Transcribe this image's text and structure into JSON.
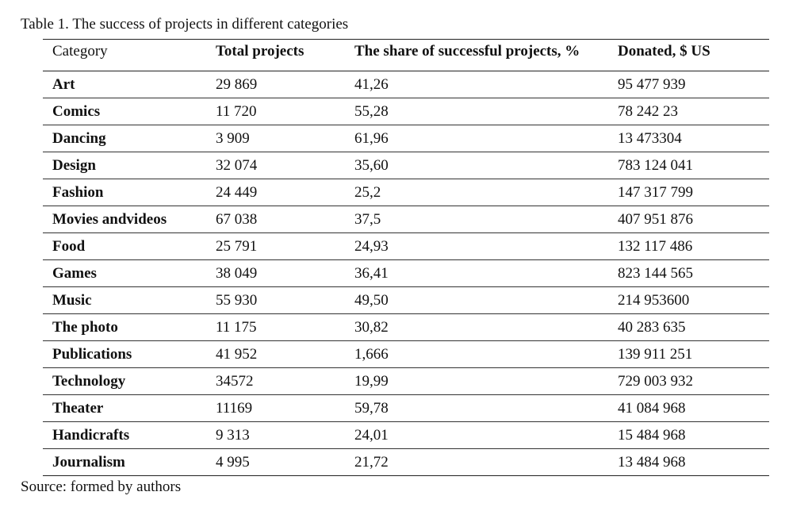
{
  "caption": "Table 1. The success of projects in different categories",
  "source": "Source: formed by authors",
  "columns": [
    "Category",
    "Total projects",
    "The share of successful projects, %",
    "Donated, $ US"
  ],
  "rows": [
    [
      "Art",
      "29 869",
      "41,26",
      "95 477 939"
    ],
    [
      "Comics",
      "11 720",
      "55,28",
      "78 242 23"
    ],
    [
      "Dancing",
      "3 909",
      "61,96",
      "13 473304"
    ],
    [
      "Design",
      "32 074",
      "35,60",
      "783 124 041"
    ],
    [
      "Fashion",
      "24 449",
      "25,2",
      "147 317 799"
    ],
    [
      "Movies andvideos",
      "67 038",
      "37,5",
      "407 951 876"
    ],
    [
      "Food",
      "25 791",
      "24,93",
      "132 117 486"
    ],
    [
      "Games",
      "38 049",
      "36,41",
      "823 144 565"
    ],
    [
      "Music",
      "55 930",
      "49,50",
      "214 953600"
    ],
    [
      "The photo",
      "11 175",
      "30,82",
      "40 283 635"
    ],
    [
      "Publications",
      "41 952",
      "1,666",
      "139 911 251"
    ],
    [
      "Technology",
      "34572",
      "19,99",
      "729 003 932"
    ],
    [
      "Theater",
      "11169",
      "59,78",
      "41 084 968"
    ],
    [
      "Handicrafts",
      "9 313",
      "24,01",
      "15 484 968"
    ],
    [
      "Journalism",
      "4 995",
      "21,72",
      "13 484 968"
    ]
  ]
}
